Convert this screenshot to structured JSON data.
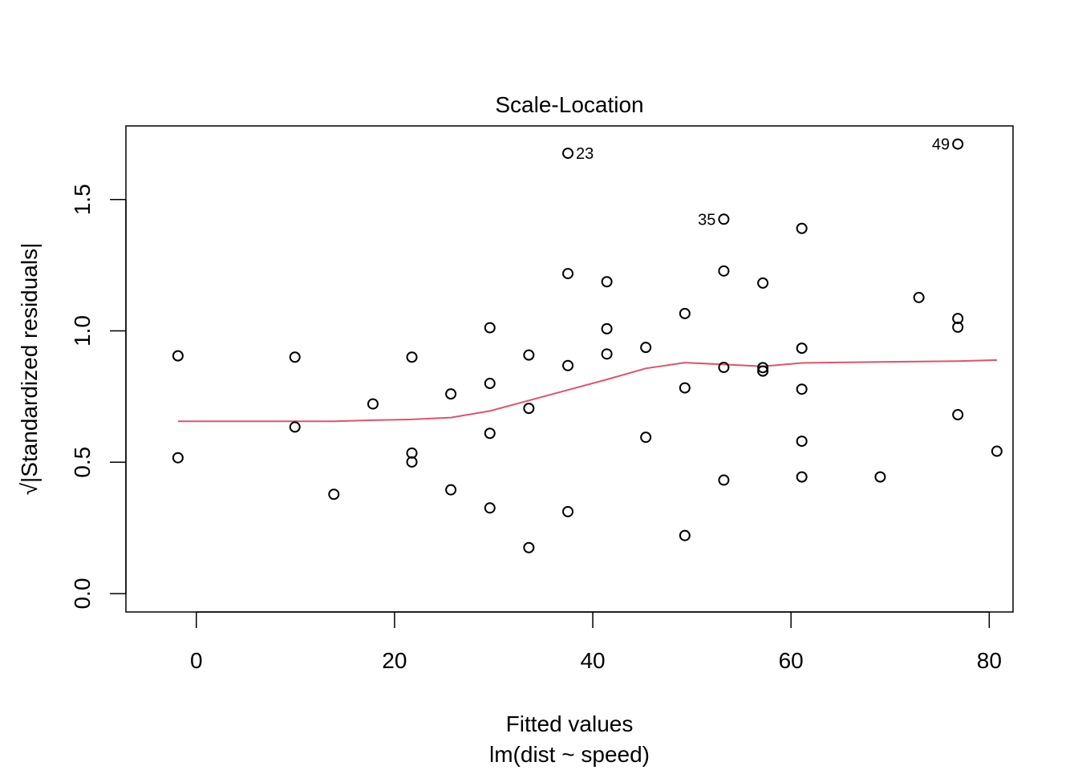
{
  "chart_data": {
    "type": "scatter",
    "title": "Scale-Location",
    "xlabel": "Fitted values",
    "sublabel": "lm(dist ~ speed)",
    "ylabel": "√|Standardized residuals|",
    "xlim": [
      -7.1,
      82.4
    ],
    "ylim": [
      -0.07,
      1.78
    ],
    "xticks": [
      0,
      20,
      40,
      60,
      80
    ],
    "xtick_labels": [
      "0",
      "20",
      "40",
      "60",
      "80"
    ],
    "yticks": [
      0.0,
      0.5,
      1.0,
      1.5
    ],
    "ytick_labels": [
      "0.0",
      "0.5",
      "1.0",
      "1.5"
    ],
    "grid": false,
    "smooth_color": "#DF536B",
    "points": [
      {
        "x": -1.85,
        "y": 0.905
      },
      {
        "x": -1.85,
        "y": 0.517
      },
      {
        "x": 9.95,
        "y": 0.9
      },
      {
        "x": 9.95,
        "y": 0.634
      },
      {
        "x": 13.88,
        "y": 0.378
      },
      {
        "x": 17.82,
        "y": 0.722
      },
      {
        "x": 21.75,
        "y": 0.9
      },
      {
        "x": 21.75,
        "y": 0.535
      },
      {
        "x": 21.75,
        "y": 0.501
      },
      {
        "x": 25.68,
        "y": 0.76
      },
      {
        "x": 25.68,
        "y": 0.395
      },
      {
        "x": 29.62,
        "y": 1.012
      },
      {
        "x": 29.62,
        "y": 0.8
      },
      {
        "x": 29.62,
        "y": 0.61
      },
      {
        "x": 29.62,
        "y": 0.326
      },
      {
        "x": 33.55,
        "y": 0.908
      },
      {
        "x": 33.55,
        "y": 0.705
      },
      {
        "x": 33.55,
        "y": 0.175
      },
      {
        "x": 37.49,
        "y": 1.676,
        "label": "23"
      },
      {
        "x": 37.49,
        "y": 1.218
      },
      {
        "x": 37.49,
        "y": 0.868
      },
      {
        "x": 37.49,
        "y": 0.312
      },
      {
        "x": 41.42,
        "y": 1.187
      },
      {
        "x": 41.42,
        "y": 1.008
      },
      {
        "x": 41.42,
        "y": 0.912
      },
      {
        "x": 45.35,
        "y": 0.937
      },
      {
        "x": 45.35,
        "y": 0.595
      },
      {
        "x": 49.29,
        "y": 1.066
      },
      {
        "x": 49.29,
        "y": 0.783
      },
      {
        "x": 49.29,
        "y": 0.221
      },
      {
        "x": 53.22,
        "y": 1.425,
        "label": "35"
      },
      {
        "x": 53.22,
        "y": 1.228
      },
      {
        "x": 53.22,
        "y": 0.861
      },
      {
        "x": 53.22,
        "y": 0.432
      },
      {
        "x": 57.16,
        "y": 1.182
      },
      {
        "x": 57.16,
        "y": 0.86
      },
      {
        "x": 57.16,
        "y": 0.847
      },
      {
        "x": 61.09,
        "y": 1.39
      },
      {
        "x": 61.09,
        "y": 0.934
      },
      {
        "x": 61.09,
        "y": 0.778
      },
      {
        "x": 61.09,
        "y": 0.58
      },
      {
        "x": 61.09,
        "y": 0.444
      },
      {
        "x": 69.0,
        "y": 0.444
      },
      {
        "x": 72.9,
        "y": 1.127
      },
      {
        "x": 76.83,
        "y": 1.711,
        "label": "49"
      },
      {
        "x": 76.83,
        "y": 1.047
      },
      {
        "x": 76.83,
        "y": 1.014
      },
      {
        "x": 76.83,
        "y": 0.681
      },
      {
        "x": 80.77,
        "y": 0.542
      }
    ],
    "smooth": [
      {
        "x": -1.85,
        "y": 0.656
      },
      {
        "x": 9.95,
        "y": 0.656
      },
      {
        "x": 13.88,
        "y": 0.656
      },
      {
        "x": 17.82,
        "y": 0.66
      },
      {
        "x": 21.75,
        "y": 0.663
      },
      {
        "x": 25.68,
        "y": 0.67
      },
      {
        "x": 29.62,
        "y": 0.695
      },
      {
        "x": 33.55,
        "y": 0.735
      },
      {
        "x": 37.49,
        "y": 0.775
      },
      {
        "x": 41.42,
        "y": 0.815
      },
      {
        "x": 45.35,
        "y": 0.857
      },
      {
        "x": 49.29,
        "y": 0.879
      },
      {
        "x": 53.22,
        "y": 0.872
      },
      {
        "x": 57.16,
        "y": 0.865
      },
      {
        "x": 61.09,
        "y": 0.878
      },
      {
        "x": 69.0,
        "y": 0.882
      },
      {
        "x": 76.83,
        "y": 0.885
      },
      {
        "x": 80.77,
        "y": 0.889
      }
    ]
  }
}
